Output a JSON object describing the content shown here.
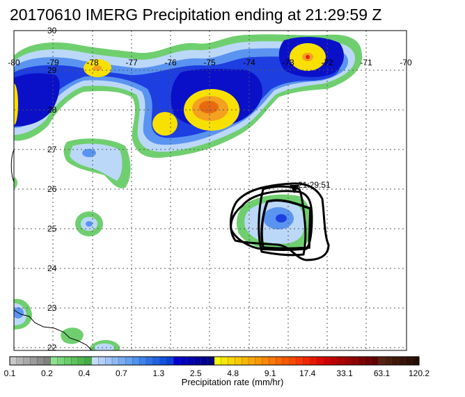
{
  "title": "20170610 IMERG Precipitation ending at 21:29:59 Z",
  "map": {
    "lon_labels": [
      "-80",
      "-79",
      "-78",
      "-77",
      "-76",
      "-75",
      "-74",
      "-73",
      "-72",
      "-71",
      "-70"
    ],
    "lat_labels": [
      "30",
      "29",
      "28",
      "27",
      "26",
      "25",
      "24",
      "23",
      "22"
    ],
    "track_time_label": "21:29:51",
    "colors": {
      "green": "#6fcf6f",
      "lightblue": "#bcd8f8",
      "midblue": "#5a94f0",
      "blue": "#1d3ee0",
      "darkblue": "#0a10c8",
      "yellow": "#f8e000",
      "orange": "#f4a020",
      "darkorange": "#e86a10",
      "red": "#e82010"
    }
  },
  "colorbar": {
    "title": "Precipitation rate (mm/hr)",
    "tick_labels": [
      "0.1",
      "0.2",
      "0.4",
      "0.7",
      "1.3",
      "2.5",
      "4.8",
      "9.1",
      "17.4",
      "33.1",
      "63.1",
      "120.2"
    ],
    "segment_colors": [
      "#c8c8c8",
      "#b4b4b4",
      "#a8a8a8",
      "#9a9a9a",
      "#8c8c8c",
      "#808080",
      "#8fe08f",
      "#7ad67a",
      "#6acc6a",
      "#5cc25c",
      "#50b850",
      "#44ae44",
      "#c8dcfa",
      "#b4d0f8",
      "#a0c4f6",
      "#8cb8f4",
      "#78acf2",
      "#64a0f0",
      "#5090ee",
      "#4080ea",
      "#3070e6",
      "#2060e2",
      "#1050de",
      "#0840d8",
      "#0000d0",
      "#0000c0",
      "#0000b0",
      "#0000a0",
      "#000090",
      "#000080",
      "#f8f800",
      "#f8e800",
      "#f8d800",
      "#f8c800",
      "#f8b800",
      "#f8a800",
      "#f89800",
      "#f88800",
      "#f87800",
      "#f86800",
      "#f85800",
      "#f84800",
      "#f83800",
      "#f02800",
      "#e81800",
      "#e00800",
      "#d00000",
      "#c00000",
      "#b00000",
      "#a00000",
      "#900000",
      "#800000",
      "#700000",
      "#600000",
      "#582010",
      "#4c1c0c",
      "#401808",
      "#381408",
      "#301004",
      "#280c04"
    ]
  }
}
